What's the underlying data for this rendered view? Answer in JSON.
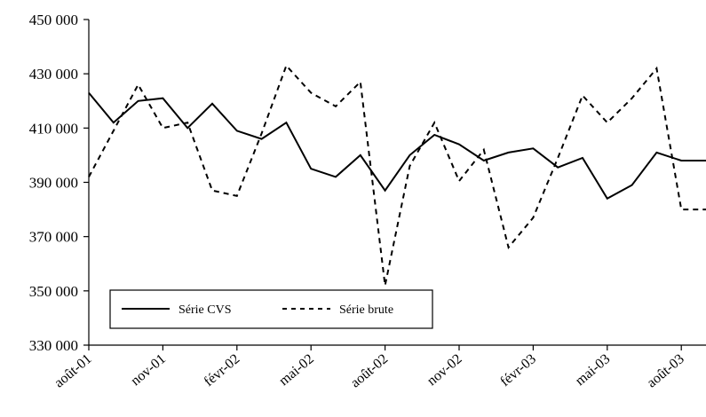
{
  "chart_data": {
    "type": "line",
    "title": "",
    "xlabel": "",
    "ylabel": "",
    "ylim": [
      330000,
      450000
    ],
    "y_ticks": [
      "450 000",
      "430 000",
      "410 000",
      "390 000",
      "370 000",
      "350 000",
      "330 000"
    ],
    "y_tick_values": [
      450000,
      430000,
      410000,
      390000,
      370000,
      350000,
      330000
    ],
    "x_tick_labels": [
      "août-01",
      "nov-01",
      "févr-02",
      "mai-02",
      "août-02",
      "nov-02",
      "févr-03",
      "mai-03",
      "août-03"
    ],
    "x": [
      "août-01",
      "sept-01",
      "oct-01",
      "nov-01",
      "déc-01",
      "janv-02",
      "févr-02",
      "mars-02",
      "avr-02",
      "mai-02",
      "juin-02",
      "juil-02",
      "août-02",
      "sept-02",
      "oct-02",
      "nov-02",
      "déc-02",
      "janv-03",
      "févr-03",
      "mars-03",
      "avr-03",
      "mai-03",
      "juin-03",
      "juil-03",
      "août-03",
      "sept-03"
    ],
    "grid": false,
    "legend_position": "bottom-left",
    "series": [
      {
        "name": "Série CVS",
        "style": "solid",
        "color": "#000000",
        "values": [
          423000,
          412000,
          420000,
          421000,
          410000,
          419000,
          409000,
          406000,
          412000,
          395000,
          392000,
          400000,
          387000,
          400000,
          407500,
          404000,
          398000,
          401000,
          402500,
          395500,
          399000,
          384000,
          389000,
          401000,
          398000,
          398000
        ]
      },
      {
        "name": "Série brute",
        "style": "dashed",
        "color": "#000000",
        "values": [
          392000,
          409000,
          426000,
          410000,
          412000,
          387000,
          385000,
          408000,
          433000,
          423000,
          418000,
          427000,
          352000,
          396000,
          412000,
          390500,
          402000,
          366000,
          377000,
          399000,
          422000,
          412000,
          421000,
          432000,
          380000,
          380000
        ]
      }
    ]
  }
}
